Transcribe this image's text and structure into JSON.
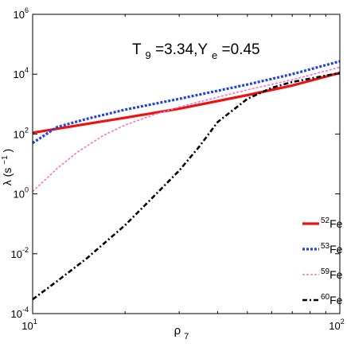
{
  "chart_data": {
    "type": "line",
    "annotation": {
      "t_main": "T",
      "t_sub": "9",
      "mid": "=3.34,Y",
      "y_sub": "e",
      "tail": "=0.45"
    },
    "xlabel": {
      "main": "ρ",
      "sub": "7"
    },
    "ylabel": {
      "pre": "λ (s",
      "sup": "−1",
      "post": ")"
    },
    "x_scale": "log",
    "y_scale": "log",
    "xlim": [
      10,
      100
    ],
    "ylim": [
      0.0001,
      1000000
    ],
    "grid": false,
    "legend_position": "bottom-right",
    "x_ticks": [
      {
        "value": 10,
        "base": "10",
        "exp": "1"
      },
      {
        "value": 100,
        "base": "10",
        "exp": "2"
      }
    ],
    "y_ticks": [
      {
        "value": 0.0001,
        "base": "10",
        "exp": "-4"
      },
      {
        "value": 0.01,
        "base": "10",
        "exp": "-2"
      },
      {
        "value": 1,
        "base": "10",
        "exp": "0"
      },
      {
        "value": 100,
        "base": "10",
        "exp": "2"
      },
      {
        "value": 10000,
        "base": "10",
        "exp": "4"
      },
      {
        "value": 1000000,
        "base": "10",
        "exp": "6"
      }
    ],
    "series": [
      {
        "name": "52Fe",
        "mass": "52",
        "element": "Fe",
        "color": "#ee1111",
        "dash": "solid",
        "x": [
          10,
          20,
          30,
          50,
          70,
          100
        ],
        "y": [
          110,
          350,
          700,
          2000,
          4200,
          11000
        ]
      },
      {
        "name": "53Fe",
        "mass": "53",
        "element": "Fe",
        "color": "#2244dd",
        "dash": "dotted",
        "x": [
          10,
          12,
          15,
          20,
          30,
          50,
          70,
          100
        ],
        "y": [
          50,
          170,
          320,
          650,
          1500,
          4500,
          10000,
          27000
        ]
      },
      {
        "name": "59Fe",
        "mass": "59",
        "element": "Fe",
        "color": "#ee77cc",
        "dash": "dotted",
        "x": [
          10,
          11,
          12,
          14,
          17,
          20,
          25,
          30,
          40,
          50,
          70,
          100
        ],
        "y": [
          1.2,
          3,
          7,
          25,
          90,
          200,
          450,
          800,
          1700,
          3000,
          6500,
          17000
        ]
      },
      {
        "name": "60Fe",
        "mass": "60",
        "element": "Fe",
        "color": "#000000",
        "dash": "dashdot",
        "x": [
          10,
          12,
          15,
          20,
          25,
          30,
          35,
          40,
          50,
          60,
          70,
          85,
          100
        ],
        "y": [
          0.0003,
          0.0012,
          0.007,
          0.09,
          0.9,
          6,
          40,
          250,
          1500,
          3500,
          5500,
          8000,
          11000
        ]
      }
    ]
  }
}
